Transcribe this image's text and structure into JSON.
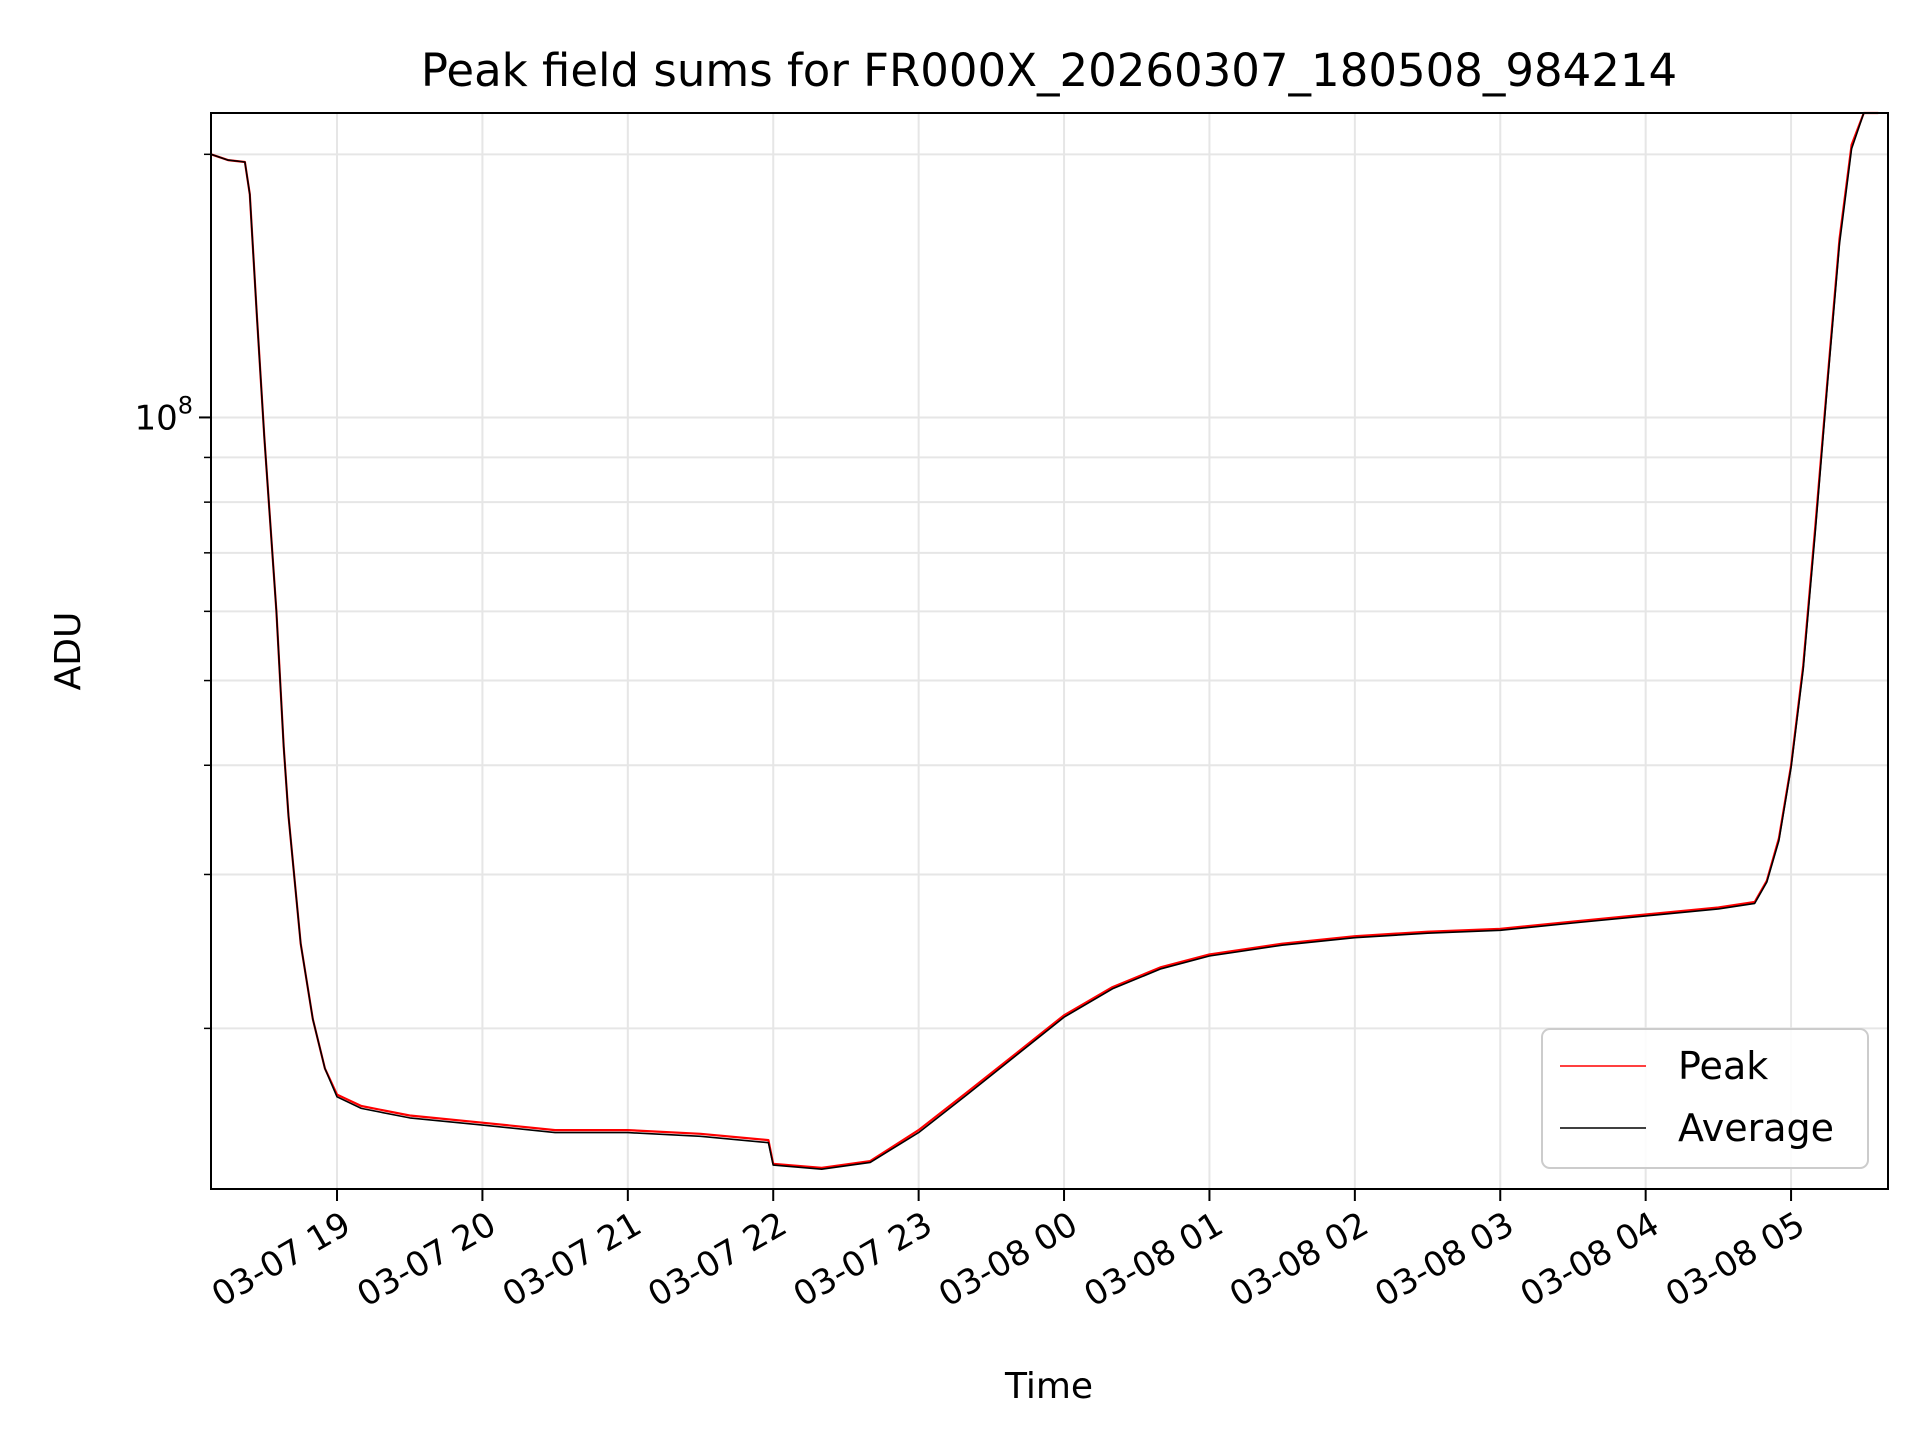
{
  "chart_data": {
    "type": "line",
    "title": "Peak field sums for FR000X_20260307_180508_984214",
    "xlabel": "Time",
    "ylabel": "ADU",
    "y_scale": "log",
    "ylim": [
      13100000,
      223000000
    ],
    "xlim": [
      "2026-03-07 18:08",
      "2026-03-08 05:40"
    ],
    "y_major_ticks": [
      {
        "value": 100000000,
        "base": "10",
        "exp": "8"
      }
    ],
    "y_minor_ticks": [
      20000000,
      30000000,
      40000000,
      50000000,
      60000000,
      70000000,
      80000000,
      90000000,
      200000000
    ],
    "x_ticks": [
      {
        "t": "2026-03-07 19:00",
        "label": "03-07 19"
      },
      {
        "t": "2026-03-07 20:00",
        "label": "03-07 20"
      },
      {
        "t": "2026-03-07 21:00",
        "label": "03-07 21"
      },
      {
        "t": "2026-03-07 22:00",
        "label": "03-07 22"
      },
      {
        "t": "2026-03-07 23:00",
        "label": "03-07 23"
      },
      {
        "t": "2026-03-08 00:00",
        "label": "03-08 00"
      },
      {
        "t": "2026-03-08 01:00",
        "label": "03-08 01"
      },
      {
        "t": "2026-03-08 02:00",
        "label": "03-08 02"
      },
      {
        "t": "2026-03-08 03:00",
        "label": "03-08 03"
      },
      {
        "t": "2026-03-08 04:00",
        "label": "03-08 04"
      },
      {
        "t": "2026-03-08 05:00",
        "label": "03-08 05"
      }
    ],
    "grid": true,
    "legend_position": "lower-right",
    "series": [
      {
        "name": "Peak",
        "color": "#ff0000",
        "points": [
          [
            "2026-03-07 18:08",
            200000000
          ],
          [
            "2026-03-07 18:15",
            197000000
          ],
          [
            "2026-03-07 18:22",
            196000000
          ],
          [
            "2026-03-07 18:24",
            180000000
          ],
          [
            "2026-03-07 18:27",
            130000000
          ],
          [
            "2026-03-07 18:30",
            95000000
          ],
          [
            "2026-03-07 18:35",
            60000000
          ],
          [
            "2026-03-07 18:38",
            42000000
          ],
          [
            "2026-03-07 18:40",
            35000000
          ],
          [
            "2026-03-07 18:45",
            25000000
          ],
          [
            "2026-03-07 18:50",
            20500000
          ],
          [
            "2026-03-07 18:55",
            18000000
          ],
          [
            "2026-03-07 19:00",
            16800000
          ],
          [
            "2026-03-07 19:10",
            16300000
          ],
          [
            "2026-03-07 19:30",
            15900000
          ],
          [
            "2026-03-07 20:00",
            15600000
          ],
          [
            "2026-03-07 20:30",
            15300000
          ],
          [
            "2026-03-07 21:00",
            15300000
          ],
          [
            "2026-03-07 21:30",
            15150000
          ],
          [
            "2026-03-07 21:58",
            14900000
          ],
          [
            "2026-03-07 22:00",
            14000000
          ],
          [
            "2026-03-07 22:20",
            13850000
          ],
          [
            "2026-03-07 22:40",
            14100000
          ],
          [
            "2026-03-07 23:00",
            15300000
          ],
          [
            "2026-03-07 23:20",
            16900000
          ],
          [
            "2026-03-07 23:40",
            18700000
          ],
          [
            "2026-03-08 00:00",
            20700000
          ],
          [
            "2026-03-08 00:20",
            22300000
          ],
          [
            "2026-03-08 00:40",
            23500000
          ],
          [
            "2026-03-08 01:00",
            24300000
          ],
          [
            "2026-03-08 01:30",
            25000000
          ],
          [
            "2026-03-08 02:00",
            25500000
          ],
          [
            "2026-03-08 02:30",
            25800000
          ],
          [
            "2026-03-08 03:00",
            26000000
          ],
          [
            "2026-03-08 03:30",
            26500000
          ],
          [
            "2026-03-08 04:00",
            27000000
          ],
          [
            "2026-03-08 04:30",
            27500000
          ],
          [
            "2026-03-08 04:45",
            27900000
          ],
          [
            "2026-03-08 04:50",
            29500000
          ],
          [
            "2026-03-08 04:55",
            33000000
          ],
          [
            "2026-03-08 05:00",
            40000000
          ],
          [
            "2026-03-08 05:05",
            52000000
          ],
          [
            "2026-03-08 05:10",
            75000000
          ],
          [
            "2026-03-08 05:15",
            110000000
          ],
          [
            "2026-03-08 05:20",
            160000000
          ],
          [
            "2026-03-08 05:25",
            205000000
          ],
          [
            "2026-03-08 05:30",
            223000000
          ],
          [
            "2026-03-08 05:36",
            223000000
          ]
        ]
      },
      {
        "name": "Average",
        "color": "#000000",
        "points": [
          [
            "2026-03-07 18:08",
            200000000
          ],
          [
            "2026-03-07 18:15",
            197000000
          ],
          [
            "2026-03-07 18:22",
            196000000
          ],
          [
            "2026-03-07 18:24",
            180000000
          ],
          [
            "2026-03-07 18:27",
            130000000
          ],
          [
            "2026-03-07 18:30",
            95000000
          ],
          [
            "2026-03-07 18:35",
            60000000
          ],
          [
            "2026-03-07 18:38",
            42000000
          ],
          [
            "2026-03-07 18:40",
            35000000
          ],
          [
            "2026-03-07 18:45",
            25000000
          ],
          [
            "2026-03-07 18:50",
            20500000
          ],
          [
            "2026-03-07 18:55",
            18000000
          ],
          [
            "2026-03-07 19:00",
            16700000
          ],
          [
            "2026-03-07 19:10",
            16200000
          ],
          [
            "2026-03-07 19:30",
            15800000
          ],
          [
            "2026-03-07 20:00",
            15500000
          ],
          [
            "2026-03-07 20:30",
            15200000
          ],
          [
            "2026-03-07 21:00",
            15200000
          ],
          [
            "2026-03-07 21:30",
            15050000
          ],
          [
            "2026-03-07 21:58",
            14800000
          ],
          [
            "2026-03-07 22:00",
            13950000
          ],
          [
            "2026-03-07 22:20",
            13800000
          ],
          [
            "2026-03-07 22:40",
            14050000
          ],
          [
            "2026-03-07 23:00",
            15200000
          ],
          [
            "2026-03-07 23:20",
            16800000
          ],
          [
            "2026-03-07 23:40",
            18600000
          ],
          [
            "2026-03-08 00:00",
            20600000
          ],
          [
            "2026-03-08 00:20",
            22200000
          ],
          [
            "2026-03-08 00:40",
            23400000
          ],
          [
            "2026-03-08 01:00",
            24200000
          ],
          [
            "2026-03-08 01:30",
            24900000
          ],
          [
            "2026-03-08 02:00",
            25400000
          ],
          [
            "2026-03-08 02:30",
            25700000
          ],
          [
            "2026-03-08 03:00",
            25900000
          ],
          [
            "2026-03-08 03:30",
            26400000
          ],
          [
            "2026-03-08 04:00",
            26900000
          ],
          [
            "2026-03-08 04:30",
            27400000
          ],
          [
            "2026-03-08 04:45",
            27800000
          ],
          [
            "2026-03-08 04:50",
            29400000
          ],
          [
            "2026-03-08 04:55",
            32800000
          ],
          [
            "2026-03-08 05:00",
            39800000
          ],
          [
            "2026-03-08 05:05",
            51500000
          ],
          [
            "2026-03-08 05:10",
            74000000
          ],
          [
            "2026-03-08 05:15",
            109000000
          ],
          [
            "2026-03-08 05:20",
            158000000
          ],
          [
            "2026-03-08 05:25",
            203000000
          ],
          [
            "2026-03-08 05:30",
            223000000
          ],
          [
            "2026-03-08 05:36",
            223000000
          ]
        ]
      }
    ]
  }
}
